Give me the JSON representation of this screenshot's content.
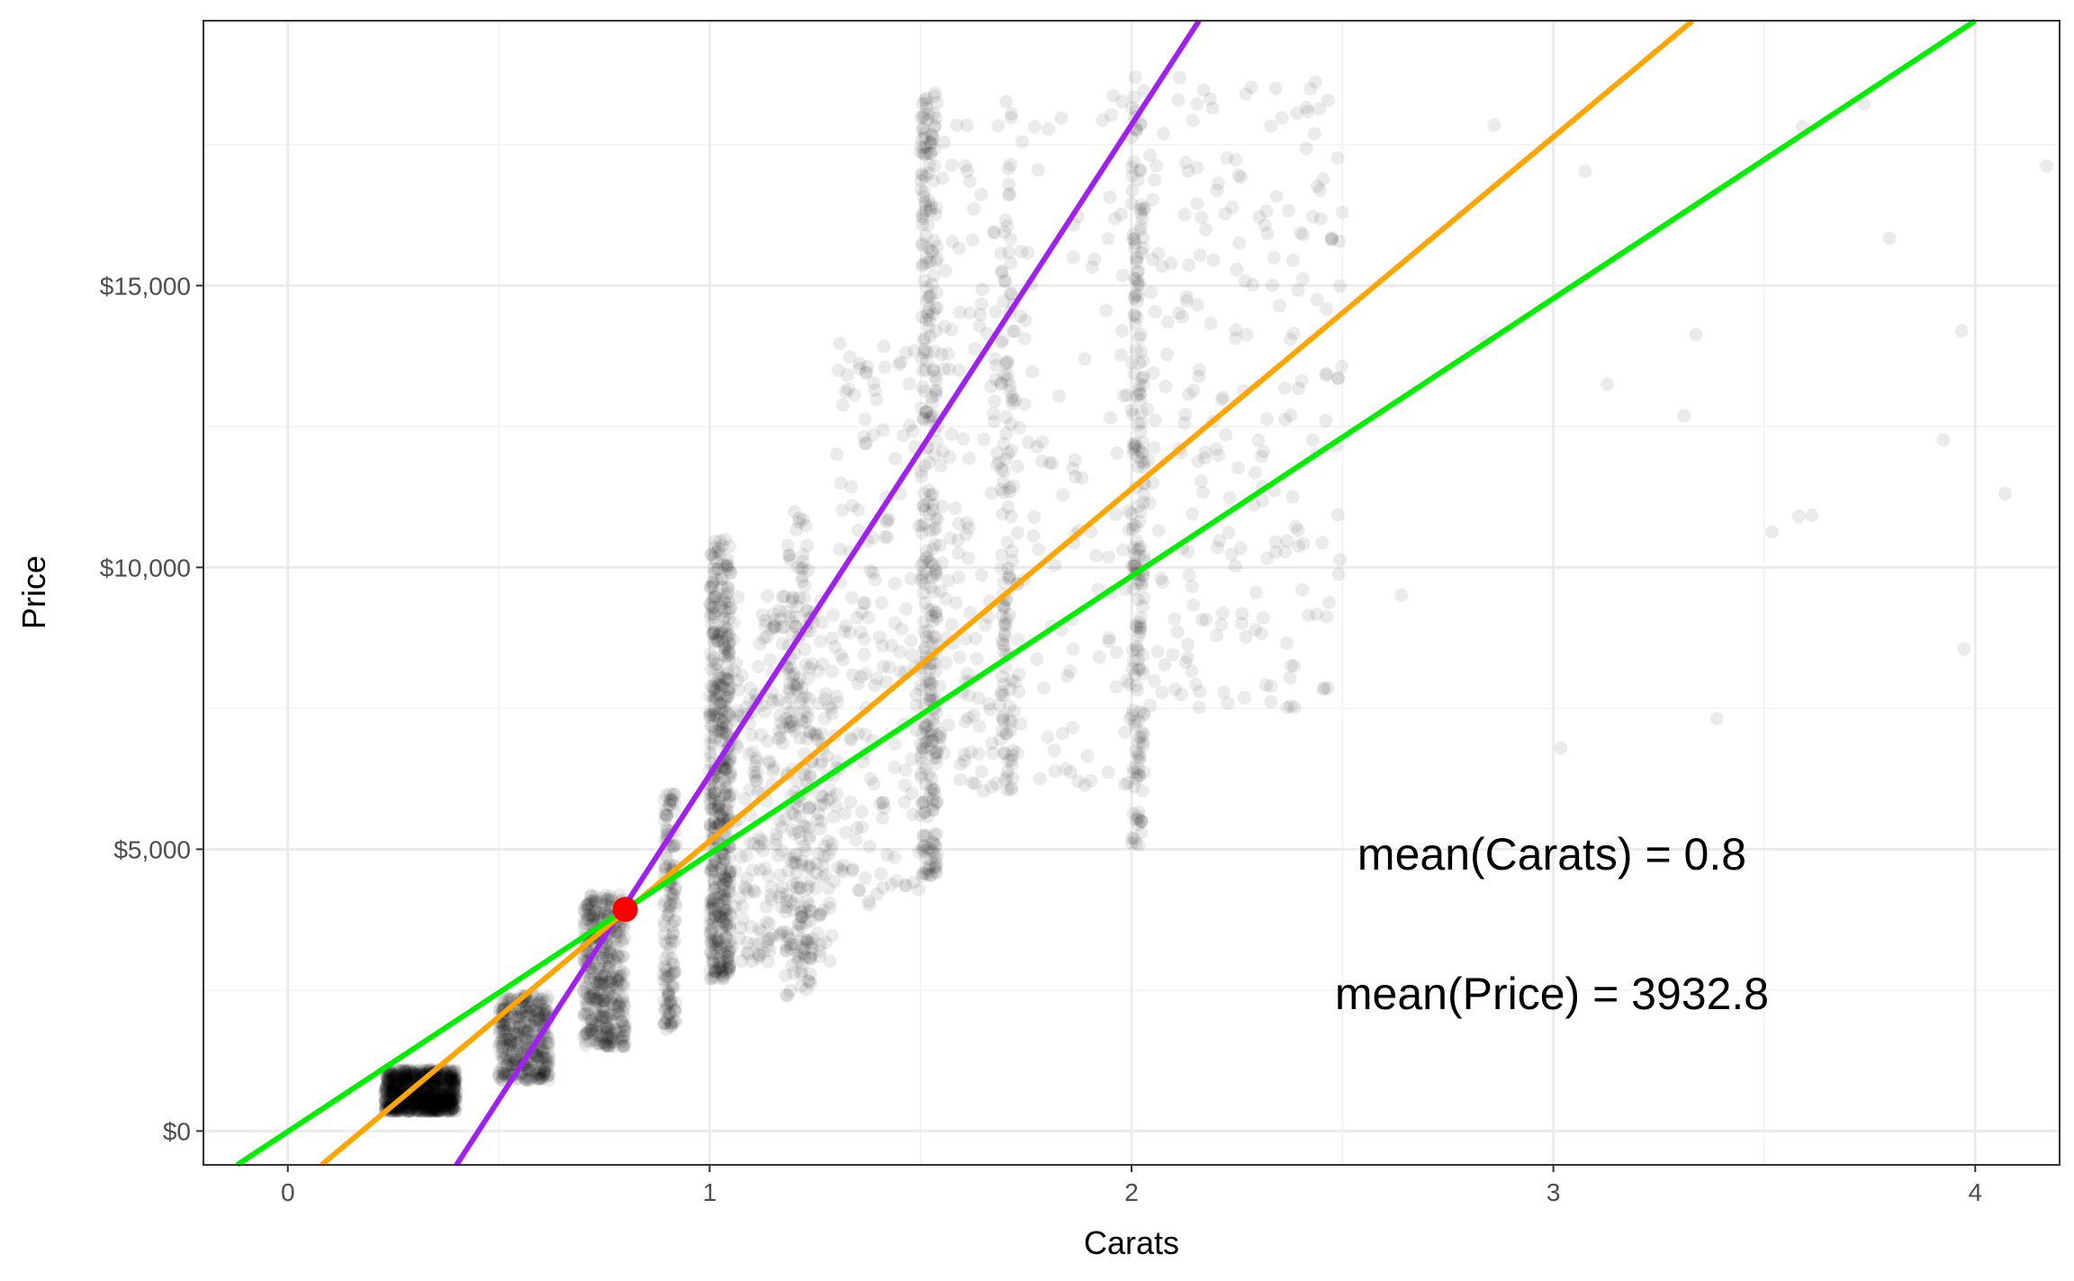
{
  "chart_data": {
    "type": "scatter",
    "title": "",
    "xlabel": "Carats",
    "ylabel": "Price",
    "xlim": [
      -0.2,
      4.2
    ],
    "ylim": [
      -600,
      19700
    ],
    "grid": true,
    "x_ticks": [
      0,
      1,
      2,
      3,
      4
    ],
    "x_tick_labels": [
      "0",
      "1",
      "2",
      "3",
      "4"
    ],
    "y_ticks": [
      0,
      5000,
      10000,
      15000
    ],
    "y_tick_labels": [
      "$0",
      "$5,000",
      "$10,000",
      "$15,000"
    ],
    "colors": {
      "points": "#000000",
      "purple_line": "#a020f0",
      "orange_line": "#ffa500",
      "green_line": "#00ee00",
      "mean_point": "#ff0000"
    },
    "lines": [
      {
        "color": "purple",
        "x": [
          0.4,
          2.16
        ],
        "y": [
          -600,
          19700
        ]
      },
      {
        "color": "orange",
        "x": [
          0.08,
          3.33
        ],
        "y": [
          -600,
          19700
        ]
      },
      {
        "color": "green",
        "x": [
          -0.12,
          4.0
        ],
        "y": [
          -600,
          19700
        ]
      }
    ],
    "mean_point": {
      "x": 0.8,
      "y": 3932.8
    },
    "annotations": [
      {
        "text": "mean(Carats) = 0.8",
        "x": 3.0,
        "y": 5000
      },
      {
        "text": "mean(Price) = 3932.8",
        "x": 3.0,
        "y": 2500
      }
    ],
    "point_clusters": [
      {
        "x": [
          0.23,
          0.4
        ],
        "y": [
          350,
          1100
        ],
        "n": 900
      },
      {
        "x": [
          0.5,
          0.62
        ],
        "y": [
          900,
          2400
        ],
        "n": 350
      },
      {
        "x": [
          0.7,
          0.8
        ],
        "y": [
          1500,
          4200
        ],
        "n": 400
      },
      {
        "x": [
          0.89,
          0.92
        ],
        "y": [
          1800,
          6000
        ],
        "n": 140
      },
      {
        "x": [
          1.0,
          1.05
        ],
        "y": [
          2700,
          10500
        ],
        "n": 450
      },
      {
        "x": [
          1.03,
          1.3
        ],
        "y": [
          3000,
          9500
        ],
        "n": 350
      },
      {
        "x": [
          1.18,
          1.24
        ],
        "y": [
          2400,
          11000
        ],
        "n": 140
      },
      {
        "x": [
          1.3,
          1.5
        ],
        "y": [
          4000,
          14000
        ],
        "n": 160
      },
      {
        "x": [
          1.5,
          1.54
        ],
        "y": [
          4500,
          18500
        ],
        "n": 320
      },
      {
        "x": [
          1.54,
          1.75
        ],
        "y": [
          6000,
          18000
        ],
        "n": 160
      },
      {
        "x": [
          1.69,
          1.72
        ],
        "y": [
          6000,
          18600
        ],
        "n": 100
      },
      {
        "x": [
          1.75,
          2.0
        ],
        "y": [
          6000,
          18500
        ],
        "n": 90
      },
      {
        "x": [
          2.0,
          2.03
        ],
        "y": [
          5000,
          18700
        ],
        "n": 200
      },
      {
        "x": [
          2.03,
          2.5
        ],
        "y": [
          7500,
          18700
        ],
        "n": 230
      },
      {
        "x": [
          2.5,
          4.2
        ],
        "y": [
          6000,
          18700
        ],
        "n": 20
      }
    ]
  }
}
